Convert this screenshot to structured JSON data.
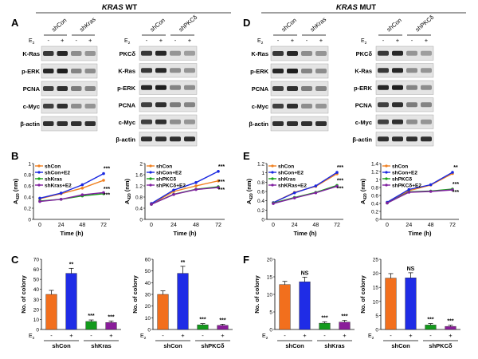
{
  "colors": {
    "shCon": "#f08020",
    "shConE2": "#1a28e0",
    "shKO": "#18a018",
    "shKOE2": "#8020a0",
    "bar_orange": "#f26f1d",
    "bar_blue": "#1f2ce6",
    "bar_green": "#139a1c",
    "bar_purple": "#8a1d9a",
    "band_dark": "#1e1e1e",
    "band_mid": "#555555",
    "band_light": "#aaaaaa"
  },
  "labels": {
    "panel_A": "A",
    "panel_B": "B",
    "panel_C": "C",
    "panel_D": "D",
    "panel_E": "E",
    "panel_F": "F",
    "title_wt_gene": "KRAS",
    "title_wt_rest": " WT",
    "title_mut_gene": "KRAS",
    "title_mut_rest": " MUT",
    "e2": "E",
    "e2_sub": "2",
    "minus": "-",
    "plus": "+",
    "shCon": "shCon",
    "shKras": "shKras",
    "shPKC": "shPKCδ",
    "time": "Time (h)",
    "colony": "No. of colony",
    "a420_main": "A",
    "a420_sub": "420",
    "a420_unit": "(nm)"
  },
  "blots": [
    {
      "id": "A1",
      "cols": [
        "shCon",
        "shKras"
      ],
      "rows": [
        "K-Ras",
        "p-ERK",
        "PCNA",
        "c-Myc",
        "β-actin"
      ]
    },
    {
      "id": "A2",
      "cols": [
        "shCon",
        "shPKCδ"
      ],
      "rows": [
        "PKCδ",
        "K-Ras",
        "p-ERK",
        "PCNA",
        "c-Myc",
        "β-actin"
      ]
    },
    {
      "id": "D1",
      "cols": [
        "shCon",
        "shKras"
      ],
      "rows": [
        "K-Ras",
        "p-ERK",
        "PCNA",
        "c-Myc",
        "β-actin"
      ]
    },
    {
      "id": "D2",
      "cols": [
        "shCon",
        "shPKCδ"
      ],
      "rows": [
        "PKCδ",
        "K-Ras",
        "p-ERK",
        "PCNA",
        "c-Myc",
        "β-actin"
      ]
    }
  ],
  "chart_data": [
    {
      "id": "B1",
      "type": "line",
      "xlabel": "Time (h)",
      "ylabel": "A420 (nm)",
      "x": [
        0,
        24,
        48,
        72
      ],
      "xticks": [
        "0",
        "24",
        "48",
        "72"
      ],
      "ylim": [
        0.0,
        1.0
      ],
      "yticks": [
        "0",
        "0.2",
        "0.4",
        "0.6",
        "0.8",
        "1"
      ],
      "series": [
        {
          "name": "shCon",
          "values": [
            0.37,
            0.46,
            0.56,
            0.7
          ]
        },
        {
          "name": "shCon+E2",
          "values": [
            0.38,
            0.47,
            0.62,
            0.82
          ]
        },
        {
          "name": "shKras",
          "values": [
            0.33,
            0.36,
            0.42,
            0.46
          ]
        },
        {
          "name": "shKras+E2",
          "values": [
            0.32,
            0.36,
            0.44,
            0.48
          ]
        }
      ],
      "annotations": [
        "***",
        "***",
        "***"
      ]
    },
    {
      "id": "B2",
      "type": "line",
      "xlabel": "Time (h)",
      "ylabel": "A420 (nm)",
      "x": [
        0,
        24,
        48,
        72
      ],
      "xticks": [
        "0",
        "24",
        "48",
        "72"
      ],
      "ylim": [
        0.0,
        2.0
      ],
      "yticks": [
        "0",
        "0.4",
        "0.8",
        "1.2",
        "1.6",
        "2"
      ],
      "series": [
        {
          "name": "shCon",
          "values": [
            0.55,
            1.0,
            1.2,
            1.38
          ]
        },
        {
          "name": "shCon+E2",
          "values": [
            0.57,
            1.05,
            1.32,
            1.72
          ]
        },
        {
          "name": "shPKCδ",
          "values": [
            0.54,
            0.9,
            1.08,
            1.17
          ]
        },
        {
          "name": "shPKCδ+E2",
          "values": [
            0.54,
            0.89,
            1.07,
            1.14
          ]
        }
      ],
      "annotations": [
        "***",
        "***",
        "***"
      ]
    },
    {
      "id": "E1",
      "type": "line",
      "xlabel": "Time (h)",
      "ylabel": "A420 (nm)",
      "x": [
        0,
        24,
        48,
        72
      ],
      "xticks": [
        "0",
        "24",
        "48",
        "72"
      ],
      "ylim": [
        0.0,
        1.2
      ],
      "yticks": [
        "0",
        "0.2",
        "0.4",
        "0.6",
        "0.8",
        "1",
        "1.2"
      ],
      "series": [
        {
          "name": "shCon",
          "values": [
            0.36,
            0.58,
            0.71,
            0.98
          ]
        },
        {
          "name": "shCon+E2",
          "values": [
            0.36,
            0.57,
            0.72,
            1.01
          ]
        },
        {
          "name": "shKras",
          "values": [
            0.35,
            0.47,
            0.58,
            0.73
          ]
        },
        {
          "name": "shKRas+E2",
          "values": [
            0.34,
            0.46,
            0.57,
            0.71
          ]
        }
      ],
      "annotations": [
        "***",
        "***",
        "***"
      ]
    },
    {
      "id": "E2",
      "type": "line",
      "xlabel": "Time (h)",
      "ylabel": "A420 (nm)",
      "x": [
        0,
        24,
        48,
        72
      ],
      "xticks": [
        "0",
        "24",
        "48",
        "72"
      ],
      "ylim": [
        0.0,
        1.4
      ],
      "yticks": [
        "0",
        "0.2",
        "0.4",
        "0.6",
        "0.8",
        "1",
        "1.2",
        "1.4"
      ],
      "series": [
        {
          "name": "shCon",
          "values": [
            0.42,
            0.72,
            0.86,
            1.15
          ]
        },
        {
          "name": "shCon+E2",
          "values": [
            0.43,
            0.75,
            0.87,
            1.18
          ]
        },
        {
          "name": "shPKCδ",
          "values": [
            0.41,
            0.69,
            0.71,
            0.76
          ]
        },
        {
          "name": "shPKCδ+E2",
          "values": [
            0.41,
            0.68,
            0.7,
            0.74
          ]
        }
      ],
      "annotations": [
        "**",
        "***",
        "***"
      ]
    },
    {
      "id": "C1",
      "type": "bar",
      "ylabel": "No. of colony",
      "ylim": [
        0,
        70
      ],
      "yticks": [
        "0",
        "10",
        "20",
        "30",
        "40",
        "50",
        "60",
        "70"
      ],
      "groups": [
        "shCon",
        "shKras"
      ],
      "values": [
        35,
        56,
        8,
        7
      ],
      "errors": [
        4,
        5,
        1.5,
        1.5
      ],
      "e2": [
        "-",
        "+",
        "-",
        "+"
      ],
      "annotations": [
        "",
        "**",
        "***",
        "***"
      ]
    },
    {
      "id": "C2",
      "type": "bar",
      "ylabel": "No. of colony",
      "ylim": [
        0,
        60
      ],
      "yticks": [
        "0",
        "10",
        "20",
        "30",
        "40",
        "50",
        "60"
      ],
      "groups": [
        "shCon",
        "shPKCδ"
      ],
      "values": [
        30,
        48,
        4,
        3.5
      ],
      "errors": [
        3,
        6,
        1,
        1
      ],
      "e2": [
        "-",
        "+",
        "-",
        "+"
      ],
      "annotations": [
        "",
        "**",
        "***",
        "***"
      ]
    },
    {
      "id": "F1",
      "type": "bar",
      "ylabel": "No. of colony",
      "ylim": [
        0,
        20
      ],
      "yticks": [
        "0",
        "5",
        "10",
        "15",
        "20"
      ],
      "groups": [
        "shCon",
        "shKras"
      ],
      "values": [
        12.8,
        13.6,
        1.8,
        2.1
      ],
      "errors": [
        0.9,
        1.3,
        0.4,
        0.5
      ],
      "e2": [
        "-",
        "+",
        "-",
        "+"
      ],
      "annotations": [
        "",
        "NS",
        "***",
        "***"
      ]
    },
    {
      "id": "F2",
      "type": "bar",
      "ylabel": "No. of colony",
      "ylim": [
        0,
        25
      ],
      "yticks": [
        "0",
        "5",
        "10",
        "15",
        "20",
        "25"
      ],
      "groups": [
        "shCon",
        "shPKCδ"
      ],
      "values": [
        18.3,
        18.4,
        1.6,
        1.1
      ],
      "errors": [
        1.6,
        1.8,
        0.5,
        0.4
      ],
      "e2": [
        "-",
        "+",
        "-",
        "+"
      ],
      "annotations": [
        "",
        "NS",
        "***",
        "***"
      ]
    }
  ]
}
